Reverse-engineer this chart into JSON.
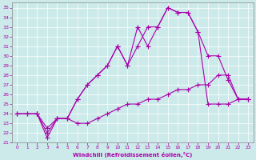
{
  "xlabel": "Windchill (Refroidissement éolien,°C)",
  "background_color": "#cceaea",
  "line_color": "#aa00aa",
  "xlim": [
    -0.5,
    23.5
  ],
  "ylim": [
    21,
    35.5
  ],
  "xticks": [
    0,
    1,
    2,
    3,
    4,
    5,
    6,
    7,
    8,
    9,
    10,
    11,
    12,
    13,
    14,
    15,
    16,
    17,
    18,
    19,
    20,
    21,
    22,
    23
  ],
  "yticks": [
    21,
    22,
    23,
    24,
    25,
    26,
    27,
    28,
    29,
    30,
    31,
    32,
    33,
    34,
    35
  ],
  "line1_x": [
    0,
    1,
    2,
    3,
    4,
    5,
    6,
    7,
    8,
    9,
    10,
    11,
    12,
    13,
    14,
    15,
    16,
    17,
    18,
    19,
    20,
    21,
    22,
    23
  ],
  "line1_y": [
    24,
    24,
    24,
    22.5,
    23.5,
    23.5,
    23,
    23,
    23.5,
    24,
    24.5,
    25,
    25,
    25.5,
    25.5,
    26,
    26.5,
    26.5,
    27,
    27,
    28,
    28,
    25.5,
    25.5
  ],
  "line2_x": [
    0,
    1,
    2,
    3,
    4,
    5,
    6,
    7,
    8,
    9,
    10,
    11,
    12,
    13,
    14,
    15,
    16,
    17,
    18,
    19,
    20,
    21,
    22,
    23
  ],
  "line2_y": [
    24,
    24,
    24,
    22,
    23.5,
    23.5,
    25.5,
    27,
    28,
    29,
    31,
    29,
    31,
    33,
    33,
    35,
    34.5,
    34.5,
    32.5,
    25,
    25,
    25,
    25.5,
    25.5
  ],
  "line3_x": [
    2,
    3,
    4,
    5,
    6,
    7,
    8,
    9,
    10,
    11,
    12,
    13,
    14,
    15,
    16,
    17,
    18,
    19,
    20,
    21,
    22,
    23
  ],
  "line3_y": [
    24,
    21.5,
    23.5,
    23.5,
    25.5,
    27,
    28,
    29,
    31,
    29,
    33,
    31,
    33,
    35,
    34.5,
    34.5,
    32.5,
    30,
    30,
    27.5,
    25.5,
    25.5
  ]
}
